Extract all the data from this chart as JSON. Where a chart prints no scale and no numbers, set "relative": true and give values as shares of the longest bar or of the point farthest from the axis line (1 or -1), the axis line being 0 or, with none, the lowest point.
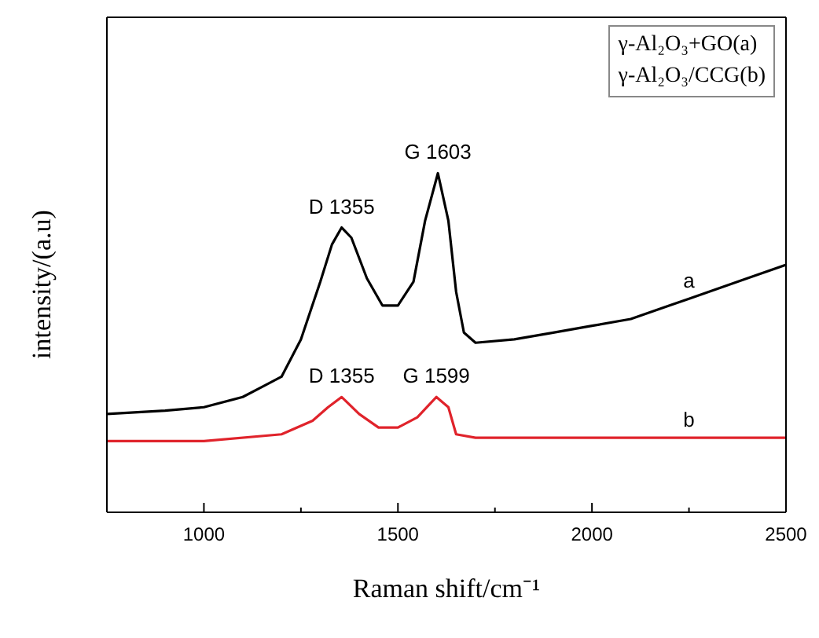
{
  "chart_data": {
    "type": "line",
    "xlabel": "Raman shift/cm⁻¹",
    "ylabel": "intensity/(a.u)",
    "relative": true,
    "marker": "none",
    "line_style": "solid",
    "xlim": [
      750,
      2500
    ],
    "xticks": [
      1000,
      {
        "value": 1250,
        "label": null
      },
      1500,
      {
        "value": 1750,
        "label": null
      },
      2000,
      {
        "value": 2250,
        "label": null
      },
      2500
    ],
    "series": [
      {
        "name": "a",
        "color": "#000000",
        "x": [
          750,
          900,
          1000,
          1100,
          1150,
          1200,
          1250,
          1300,
          1330,
          1355,
          1380,
          1420,
          1460,
          1500,
          1540,
          1570,
          1603,
          1630,
          1650,
          1670,
          1700,
          1800,
          1900,
          2000,
          2100,
          2200,
          2250,
          2400,
          2500
        ],
        "values": [
          0.29,
          0.3,
          0.31,
          0.34,
          0.37,
          0.4,
          0.51,
          0.68,
          0.79,
          0.84,
          0.81,
          0.69,
          0.61,
          0.61,
          0.68,
          0.86,
          1,
          0.86,
          0.65,
          0.53,
          0.5,
          0.51,
          0.53,
          0.55,
          0.57,
          0.61,
          0.63,
          0.69,
          0.73
        ]
      },
      {
        "name": "b",
        "color": "#e0232b",
        "x": [
          750,
          1000,
          1200,
          1280,
          1320,
          1355,
          1400,
          1450,
          1500,
          1550,
          1599,
          1630,
          1650,
          1700,
          2000,
          2250,
          2400,
          2500
        ],
        "values": [
          0.21,
          0.21,
          0.23,
          0.27,
          0.31,
          0.34,
          0.29,
          0.25,
          0.25,
          0.28,
          0.34,
          0.31,
          0.23,
          0.22,
          0.22,
          0.22,
          0.22,
          0.22
        ]
      }
    ],
    "annotations": [
      "γ-Al₂O₃+GO(a)",
      "γ-Al₂O₃/CCG(b)",
      {
        "text": "D 1355",
        "x": 1355,
        "y": 0.84
      },
      {
        "text": "G 1603",
        "x": 1603,
        "y": 1
      },
      {
        "text": "D 1355",
        "x": 1355,
        "y": 0.34
      },
      {
        "text": "G 1599",
        "x": 1599,
        "y": 0.34
      }
    ]
  }
}
